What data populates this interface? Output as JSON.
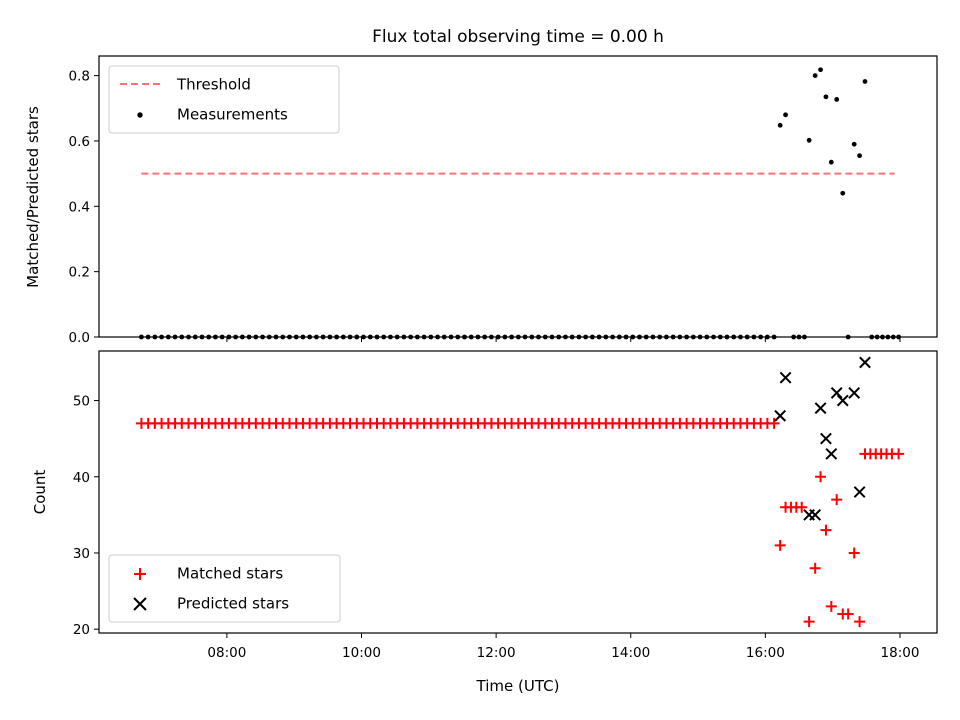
{
  "chart_data": [
    {
      "type": "scatter",
      "title": "Flux total observing time = 0.00 h",
      "xlabel": "",
      "ylabel": "Matched/Predicted stars",
      "ylim": [
        0,
        0.86
      ],
      "yticks": [
        "0.0",
        "0.2",
        "0.4",
        "0.6",
        "0.8"
      ],
      "xticks": [
        "08:00",
        "10:00",
        "12:00",
        "14:00",
        "16:00",
        "18:00"
      ],
      "xlim_hours": [
        6.1,
        18.55
      ],
      "grid": false,
      "legend_position": "top-left",
      "threshold": {
        "name": "Threshold",
        "value": 0.5,
        "x_start": 6.73,
        "x_end": 17.92,
        "color": "#ff7070",
        "style": "dashed"
      },
      "series": [
        {
          "name": "Measurements",
          "color": "#000000",
          "marker": "dot",
          "zero_run": {
            "x_start": 6.73,
            "x_end": 16.12,
            "step": 0.1,
            "y": 0.0
          },
          "points": [
            [
              16.22,
              0.648
            ],
            [
              16.3,
              0.68
            ],
            [
              16.42,
              0.0
            ],
            [
              16.5,
              0.0
            ],
            [
              16.58,
              0.0
            ],
            [
              16.65,
              0.602
            ],
            [
              16.74,
              0.8
            ],
            [
              16.82,
              0.818
            ],
            [
              16.9,
              0.735
            ],
            [
              16.98,
              0.535
            ],
            [
              17.06,
              0.727
            ],
            [
              17.15,
              0.44
            ],
            [
              17.23,
              0.0
            ],
            [
              17.32,
              0.59
            ],
            [
              17.4,
              0.555
            ],
            [
              17.48,
              0.782
            ],
            [
              17.58,
              0.0
            ],
            [
              17.66,
              0.0
            ],
            [
              17.74,
              0.0
            ],
            [
              17.82,
              0.0
            ],
            [
              17.9,
              0.0
            ],
            [
              17.98,
              0.0
            ]
          ]
        }
      ]
    },
    {
      "type": "scatter",
      "title": "",
      "xlabel": "Time (UTC)",
      "ylabel": "Count",
      "ylim": [
        19.5,
        56.5
      ],
      "yticks": [
        "20",
        "30",
        "40",
        "50"
      ],
      "xticks": [
        "08:00",
        "10:00",
        "12:00",
        "14:00",
        "16:00",
        "18:00"
      ],
      "xlim_hours": [
        6.1,
        18.55
      ],
      "grid": false,
      "legend_position": "bottom-left",
      "series": [
        {
          "name": "Matched stars",
          "color": "#ff0000",
          "marker": "plus",
          "constant_run": {
            "x_start": 6.73,
            "x_end": 16.12,
            "step": 0.1,
            "y": 47
          },
          "points": [
            [
              16.22,
              31
            ],
            [
              16.3,
              36
            ],
            [
              16.38,
              36
            ],
            [
              16.46,
              36
            ],
            [
              16.54,
              36
            ],
            [
              16.65,
              21
            ],
            [
              16.74,
              28
            ],
            [
              16.82,
              40
            ],
            [
              16.9,
              33
            ],
            [
              16.98,
              23
            ],
            [
              17.06,
              37
            ],
            [
              17.15,
              22
            ],
            [
              17.23,
              22
            ],
            [
              17.32,
              30
            ],
            [
              17.4,
              21
            ],
            [
              17.48,
              43
            ],
            [
              17.56,
              43
            ],
            [
              17.64,
              43
            ],
            [
              17.72,
              43
            ],
            [
              17.8,
              43
            ],
            [
              17.88,
              43
            ],
            [
              17.98,
              43
            ]
          ]
        },
        {
          "name": "Predicted stars",
          "color": "#000000",
          "marker": "x",
          "points": [
            [
              16.22,
              48
            ],
            [
              16.3,
              53
            ],
            [
              16.65,
              35
            ],
            [
              16.74,
              35
            ],
            [
              16.82,
              49
            ],
            [
              16.9,
              45
            ],
            [
              16.98,
              43
            ],
            [
              17.06,
              51
            ],
            [
              17.15,
              50
            ],
            [
              17.32,
              51
            ],
            [
              17.4,
              38
            ],
            [
              17.48,
              55
            ]
          ]
        }
      ]
    }
  ]
}
